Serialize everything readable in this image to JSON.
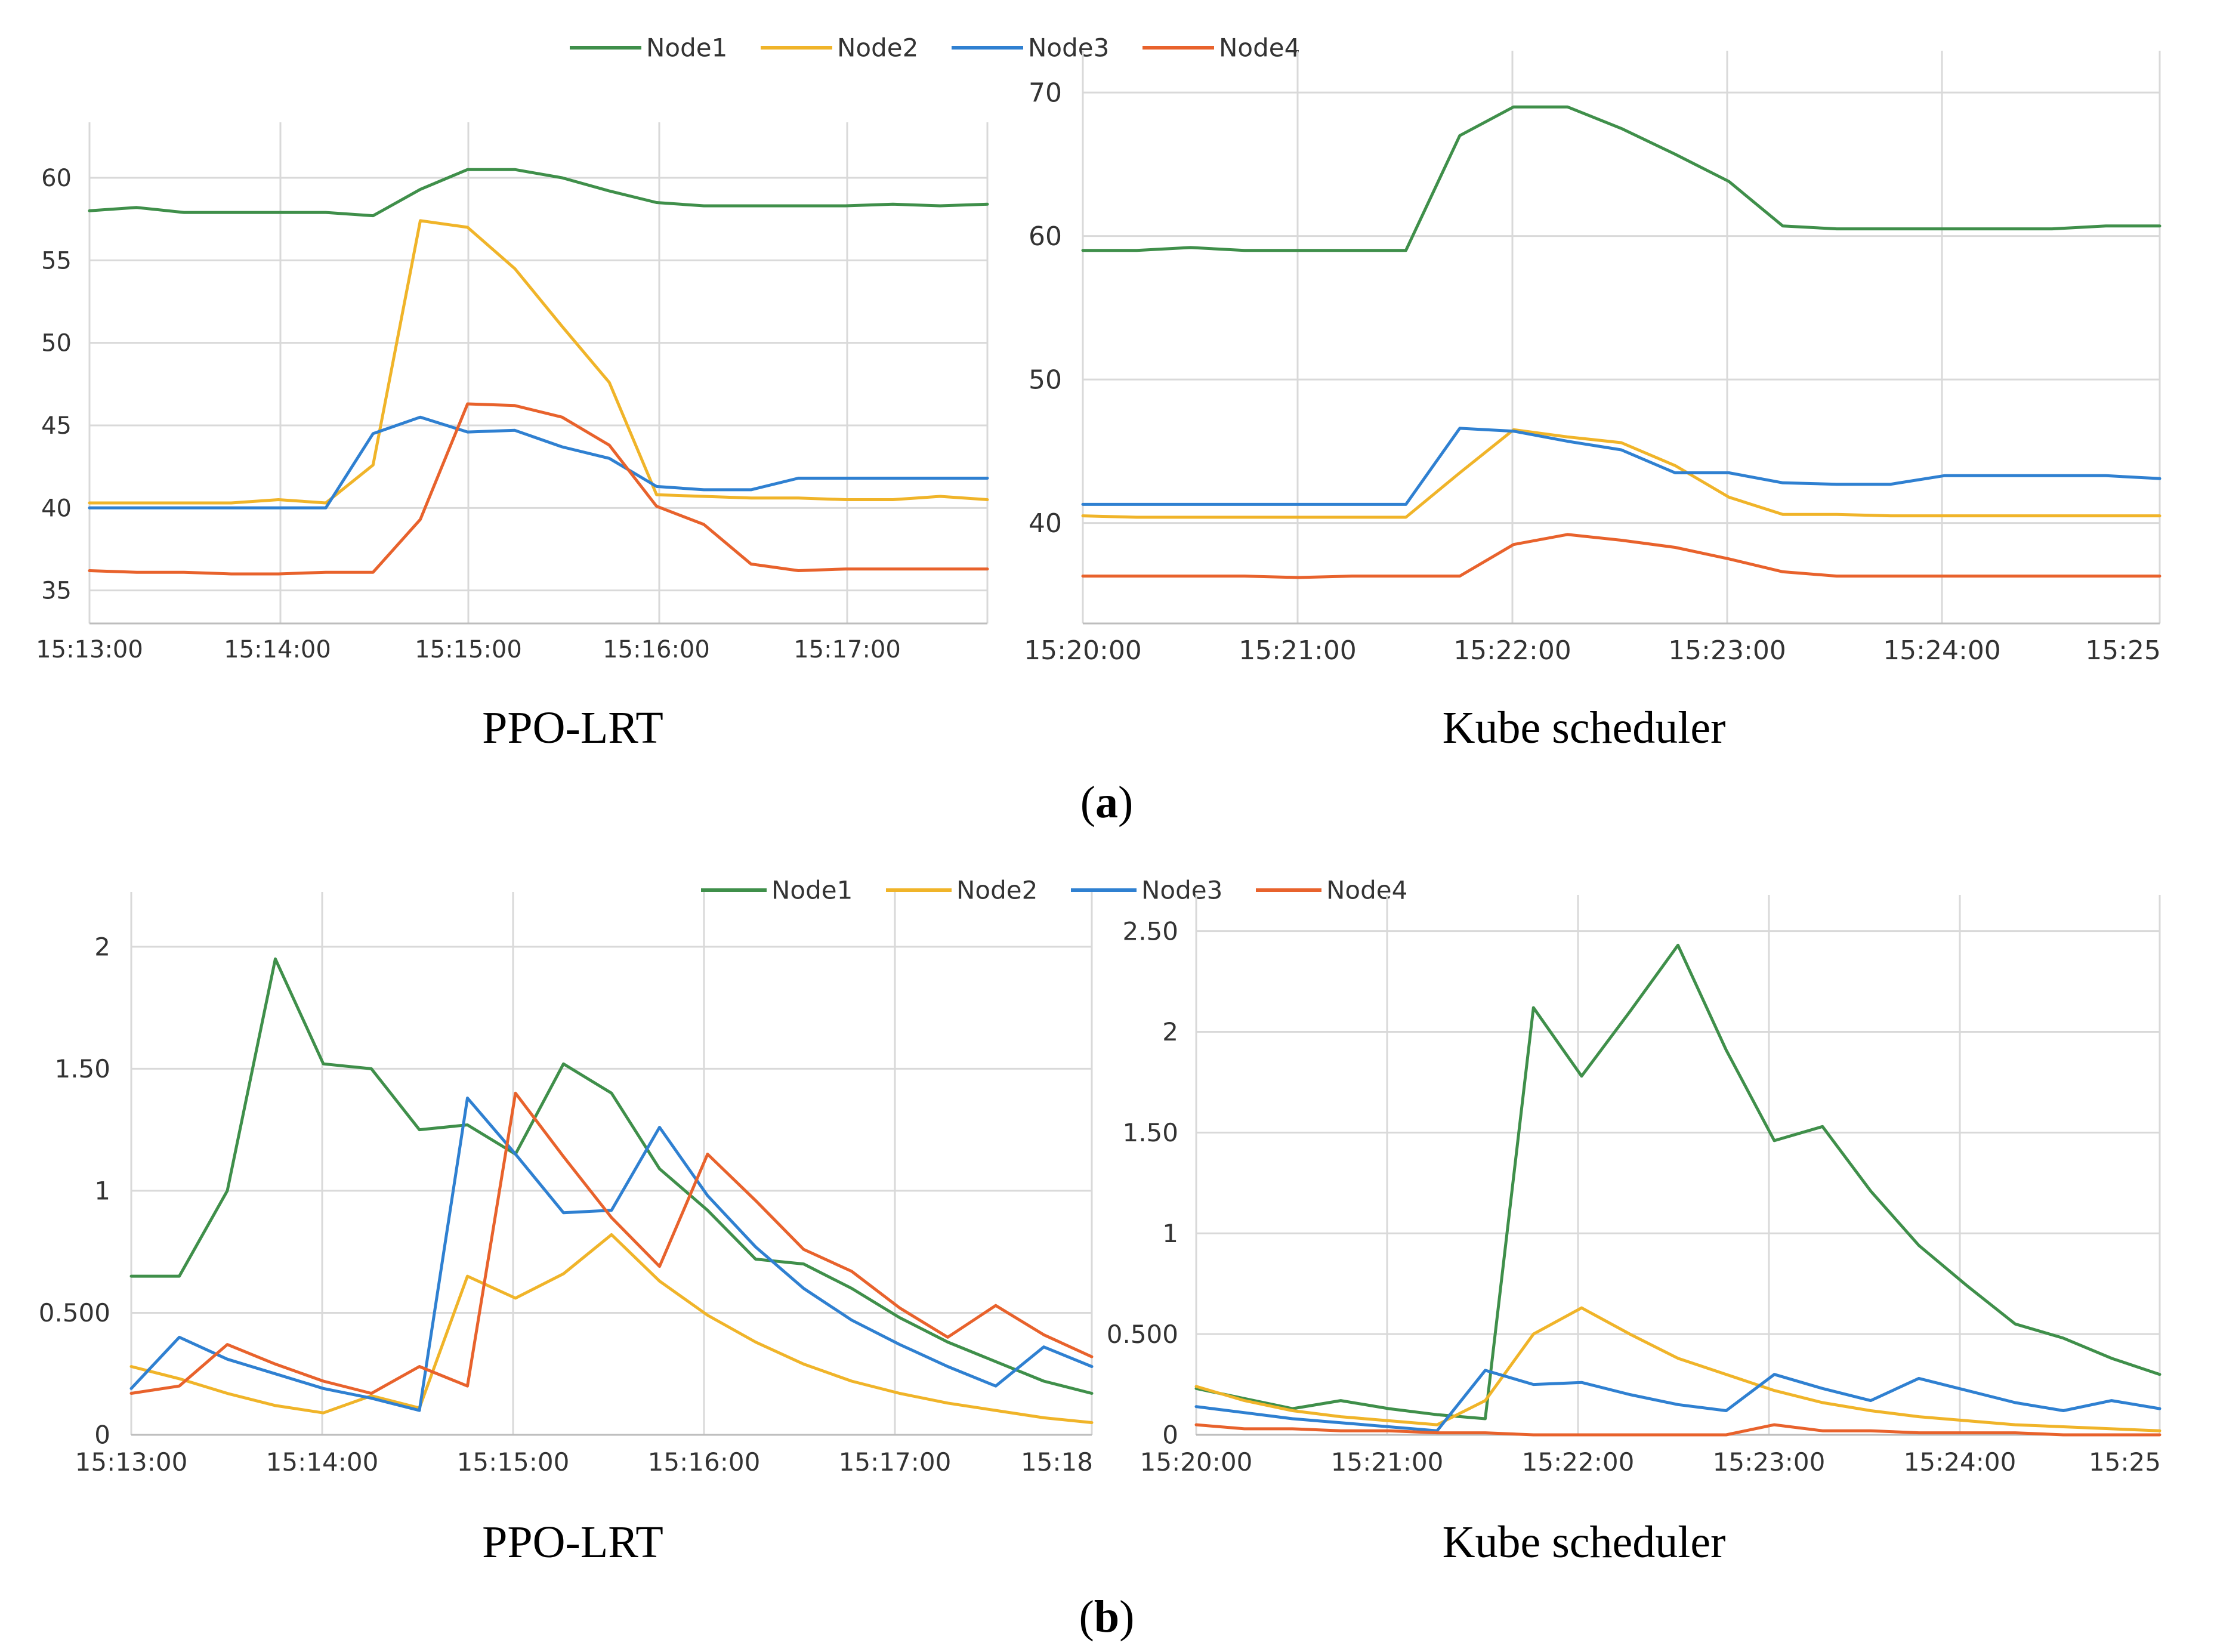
{
  "colors": {
    "Node1": "#3f8f4a",
    "Node2": "#f0b429",
    "Node3": "#2f80d1",
    "Node4": "#e8622c"
  },
  "legend_a": [
    "Node1",
    "Node2",
    "Node3",
    "Node4"
  ],
  "legend_b": [
    "Node1",
    "Node2",
    "Node3",
    "Node4"
  ],
  "labels": {
    "panel_a": "a",
    "panel_b": "b"
  },
  "chart_data": [
    {
      "id": "a-ppo",
      "type": "line",
      "title": "PPO-LRT",
      "xlabel": "",
      "ylabel": "",
      "x_ticks": [
        "15:13:00",
        "15:14:00",
        "15:15:00",
        "15:16:00",
        "15:17:00"
      ],
      "xlim": [
        0,
        4.75
      ],
      "y_ticks": [
        "35",
        "40",
        "45",
        "50",
        "55",
        "60"
      ],
      "y_tick_values": [
        35,
        40,
        45,
        50,
        55,
        60
      ],
      "ylim": [
        33,
        63
      ],
      "x": [
        0,
        0.25,
        0.5,
        0.75,
        1,
        1.25,
        1.5,
        1.75,
        2,
        2.25,
        2.5,
        2.75,
        3,
        3.25,
        3.5,
        3.75,
        4,
        4.25,
        4.5,
        4.75
      ],
      "series": [
        {
          "name": "Node1",
          "values": [
            58,
            58.2,
            57.9,
            57.9,
            57.9,
            57.9,
            57.7,
            59.3,
            60.5,
            60.5,
            60,
            59.2,
            58.5,
            58.3,
            58.3,
            58.3,
            58.3,
            58.4,
            58.3,
            58.4
          ]
        },
        {
          "name": "Node2",
          "values": [
            40.3,
            40.3,
            40.3,
            40.3,
            40.5,
            40.3,
            42.6,
            57.4,
            57,
            54.5,
            51,
            47.6,
            40.8,
            40.7,
            40.6,
            40.6,
            40.5,
            40.5,
            40.7,
            40.5
          ]
        },
        {
          "name": "Node3",
          "values": [
            40,
            40,
            40,
            40,
            40,
            40,
            44.5,
            45.5,
            44.6,
            44.7,
            43.7,
            43,
            41.3,
            41.1,
            41.1,
            41.8,
            41.8,
            41.8,
            41.8,
            41.8
          ]
        },
        {
          "name": "Node4",
          "values": [
            36.2,
            36.1,
            36.1,
            36,
            36,
            36.1,
            36.1,
            39.3,
            46.3,
            46.2,
            45.5,
            43.8,
            40.1,
            39,
            36.6,
            36.2,
            36.3,
            36.3,
            36.3,
            36.3
          ]
        }
      ]
    },
    {
      "id": "a-kube",
      "type": "line",
      "title": "Kube scheduler",
      "xlabel": "",
      "ylabel": "",
      "x_ticks": [
        "15:20:00",
        "15:21:00",
        "15:22:00",
        "15:23:00",
        "15:24:00",
        "15:25"
      ],
      "xlim": [
        0,
        5
      ],
      "y_ticks": [
        "40",
        "50",
        "60",
        "70"
      ],
      "y_tick_values": [
        40,
        50,
        60,
        70
      ],
      "ylim": [
        33,
        72.5
      ],
      "x": [
        0,
        0.25,
        0.5,
        0.75,
        1,
        1.25,
        1.5,
        1.75,
        2,
        2.25,
        2.5,
        2.75,
        3,
        3.25,
        3.5,
        3.75,
        4,
        4.25,
        4.5,
        4.75,
        5
      ],
      "series": [
        {
          "name": "Node1",
          "values": [
            59,
            59,
            59.2,
            59,
            59,
            59,
            59,
            67,
            69,
            69,
            67.5,
            65.7,
            63.8,
            60.7,
            60.5,
            60.5,
            60.5,
            60.5,
            60.5,
            60.7,
            60.7
          ]
        },
        {
          "name": "Node2",
          "values": [
            40.5,
            40.4,
            40.4,
            40.4,
            40.4,
            40.4,
            40.4,
            43.5,
            46.5,
            46,
            45.6,
            44,
            41.8,
            40.6,
            40.6,
            40.5,
            40.5,
            40.5,
            40.5,
            40.5,
            40.5
          ]
        },
        {
          "name": "Node3",
          "values": [
            41.3,
            41.3,
            41.3,
            41.3,
            41.3,
            41.3,
            41.3,
            46.6,
            46.4,
            45.7,
            45.1,
            43.5,
            43.5,
            42.8,
            42.7,
            42.7,
            43.3,
            43.3,
            43.3,
            43.3,
            43.1
          ]
        },
        {
          "name": "Node4",
          "values": [
            36.3,
            36.3,
            36.3,
            36.3,
            36.2,
            36.3,
            36.3,
            36.3,
            38.5,
            39.2,
            38.8,
            38.3,
            37.5,
            36.6,
            36.3,
            36.3,
            36.3,
            36.3,
            36.3,
            36.3,
            36.3
          ]
        }
      ]
    },
    {
      "id": "b-ppo",
      "type": "line",
      "title": "PPO-LRT",
      "xlabel": "",
      "ylabel": "",
      "x_ticks": [
        "15:13:00",
        "15:14:00",
        "15:15:00",
        "15:16:00",
        "15:17:00",
        "15:18"
      ],
      "xlim": [
        0,
        5
      ],
      "y_ticks": [
        "0",
        "0.500",
        "1",
        "1.50",
        "2"
      ],
      "y_tick_values": [
        0,
        0.5,
        1,
        1.5,
        2
      ],
      "ylim": [
        0,
        2.2
      ],
      "x": [
        0,
        0.25,
        0.5,
        0.75,
        1,
        1.25,
        1.5,
        1.75,
        2,
        2.25,
        2.5,
        2.75,
        3,
        3.25,
        3.5,
        3.75,
        4,
        4.25,
        4.5,
        4.75,
        5
      ],
      "series": [
        {
          "name": "Node1",
          "values": [
            0.65,
            0.65,
            1.0,
            1.95,
            1.52,
            1.5,
            1.25,
            1.27,
            1.15,
            1.52,
            1.4,
            1.09,
            0.92,
            0.72,
            0.7,
            0.6,
            0.48,
            0.38,
            0.3,
            0.22,
            0.17
          ]
        },
        {
          "name": "Node2",
          "values": [
            0.28,
            0.23,
            0.17,
            0.12,
            0.09,
            0.16,
            0.11,
            0.65,
            0.56,
            0.66,
            0.82,
            0.63,
            0.49,
            0.38,
            0.29,
            0.22,
            0.17,
            0.13,
            0.1,
            0.07,
            0.05
          ]
        },
        {
          "name": "Node3",
          "values": [
            0.19,
            0.4,
            0.31,
            0.25,
            0.19,
            0.15,
            0.1,
            1.38,
            1.15,
            0.91,
            0.92,
            1.26,
            0.98,
            0.77,
            0.6,
            0.47,
            0.37,
            0.28,
            0.2,
            0.36,
            0.28
          ]
        },
        {
          "name": "Node4",
          "values": [
            0.17,
            0.2,
            0.37,
            0.29,
            0.22,
            0.17,
            0.28,
            0.2,
            1.4,
            1.14,
            0.89,
            0.69,
            1.15,
            0.96,
            0.76,
            0.67,
            0.52,
            0.4,
            0.53,
            0.41,
            0.32
          ]
        }
      ]
    },
    {
      "id": "b-kube",
      "type": "line",
      "title": "Kube scheduler",
      "xlabel": "",
      "ylabel": "",
      "x_ticks": [
        "15:20:00",
        "15:21:00",
        "15:22:00",
        "15:23:00",
        "15:24:00",
        "15:25"
      ],
      "xlim": [
        0,
        5
      ],
      "y_ticks": [
        "0",
        "0.500",
        "1",
        "1.50",
        "2",
        "2.50"
      ],
      "y_tick_values": [
        0,
        0.5,
        1,
        1.5,
        2,
        2.5
      ],
      "ylim": [
        0,
        2.65
      ],
      "x": [
        0,
        0.25,
        0.5,
        0.75,
        1,
        1.25,
        1.5,
        1.75,
        2,
        2.25,
        2.5,
        2.75,
        3,
        3.25,
        3.5,
        3.75,
        4,
        4.25,
        4.5,
        4.75,
        5
      ],
      "series": [
        {
          "name": "Node1",
          "values": [
            0.23,
            0.18,
            0.13,
            0.17,
            0.13,
            0.1,
            0.08,
            2.12,
            1.78,
            2.1,
            2.43,
            1.91,
            1.46,
            1.53,
            1.21,
            0.94,
            0.74,
            0.55,
            0.48,
            0.38,
            0.3
          ]
        },
        {
          "name": "Node2",
          "values": [
            0.24,
            0.17,
            0.12,
            0.09,
            0.07,
            0.05,
            0.17,
            0.5,
            0.63,
            0.5,
            0.38,
            0.3,
            0.22,
            0.16,
            0.12,
            0.09,
            0.07,
            0.05,
            0.04,
            0.03,
            0.02
          ]
        },
        {
          "name": "Node3",
          "values": [
            0.14,
            0.11,
            0.08,
            0.06,
            0.04,
            0.02,
            0.32,
            0.25,
            0.26,
            0.2,
            0.15,
            0.12,
            0.3,
            0.23,
            0.17,
            0.28,
            0.22,
            0.16,
            0.12,
            0.17,
            0.13
          ]
        },
        {
          "name": "Node4",
          "values": [
            0.05,
            0.03,
            0.03,
            0.02,
            0.02,
            0.01,
            0.01,
            0.0,
            0.0,
            0.0,
            0.0,
            0.0,
            0.05,
            0.02,
            0.02,
            0.01,
            0.01,
            0.01,
            0.0,
            0.0,
            0.0
          ]
        }
      ]
    }
  ]
}
